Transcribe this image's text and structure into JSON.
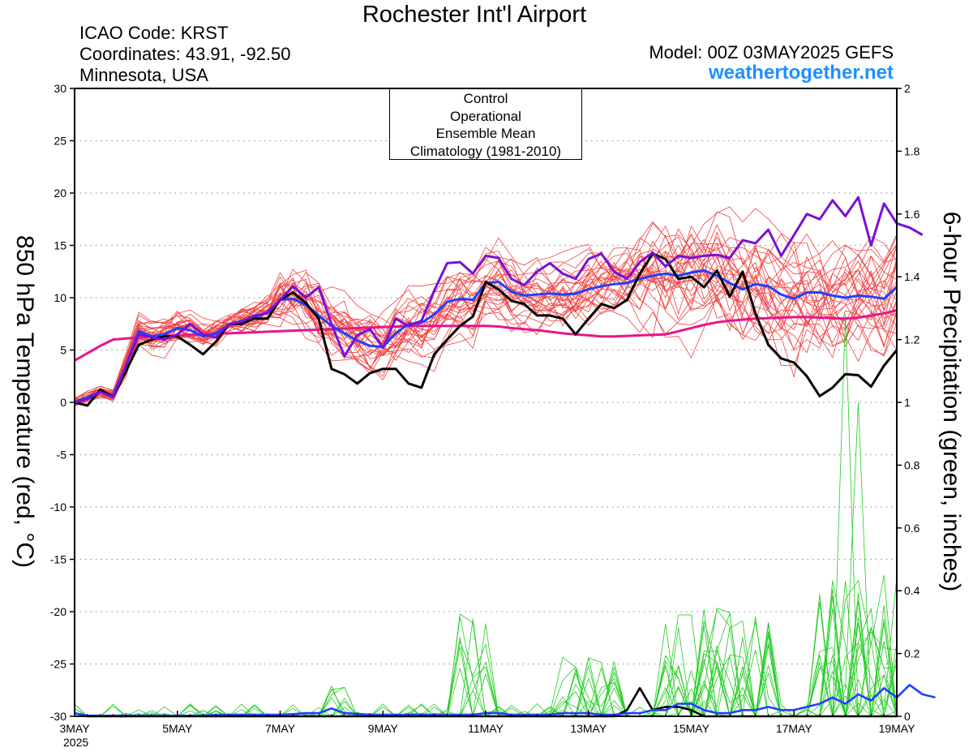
{
  "header": {
    "title": "Rochester Int'l Airport",
    "icao": "ICAO Code: KRST",
    "coords": "Coordinates: 43.91, -92.50",
    "state": "Minnesota, USA",
    "model": "Model: 00Z 03MAY2025 GEFS",
    "site": "weathertogether.net"
  },
  "chart_data": {
    "type": "line",
    "title": "Rochester Int'l Airport",
    "xlabel": "",
    "ylabel": "850 hPa Temperature (red, °C)",
    "y2label": "6-hour Precipitation (green, inches)",
    "year_label": "2025",
    "x_unit": "days since 3MAY 00Z",
    "xlim": [
      0,
      16
    ],
    "ylim": [
      -30,
      30
    ],
    "y2lim": [
      0,
      2
    ],
    "x_ticks": [
      {
        "x": 0,
        "label": "3MAY"
      },
      {
        "x": 2,
        "label": "5MAY"
      },
      {
        "x": 4,
        "label": "7MAY"
      },
      {
        "x": 6,
        "label": "9MAY"
      },
      {
        "x": 8,
        "label": "11MAY"
      },
      {
        "x": 10,
        "label": "13MAY"
      },
      {
        "x": 12,
        "label": "15MAY"
      },
      {
        "x": 14,
        "label": "17MAY"
      },
      {
        "x": 16,
        "label": "19MAY"
      }
    ],
    "y_ticks": [
      "30",
      "25",
      "20",
      "15",
      "10",
      "5",
      "0",
      "-5",
      "-10",
      "-15",
      "-20",
      "-25",
      "-30"
    ],
    "y2_ticks": [
      "2",
      "1.8",
      "1.6",
      "1.4",
      "1.2",
      "1",
      "0.8",
      "0.6",
      "0.4",
      "0.2",
      "0"
    ],
    "legend": [
      {
        "label": "Control",
        "color": "#000000"
      },
      {
        "label": "Operational",
        "color": "#7b0fd6"
      },
      {
        "label": "Ensemble Mean",
        "color": "#2040ff"
      },
      {
        "label": "Climatology (1981-2010)",
        "color": "#e8168a"
      }
    ],
    "colors": {
      "members_temp": "#f04040",
      "members_precip": "#22cc22",
      "control": "#000000",
      "operational": "#7b0fd6",
      "mean": "#2040ff",
      "climatology": "#e8168a"
    },
    "grid": true,
    "series": [
      {
        "name": "Control",
        "axis": "temp",
        "x_step": 0.25,
        "values": [
          0,
          -0.3,
          1.2,
          0.5,
          3,
          5.5,
          6,
          6.3,
          6.3,
          5.5,
          4.6,
          5.8,
          7.5,
          7.5,
          8,
          8,
          9.8,
          10.5,
          9.5,
          8,
          3.2,
          2.7,
          1.8,
          2.8,
          3.2,
          3.2,
          1.8,
          1.4,
          4.6,
          6,
          7.3,
          8.2,
          11.5,
          10.8,
          9.7,
          9.4,
          8.3,
          8.3,
          8,
          6.5,
          8,
          9.4,
          9,
          9.8,
          12.3,
          14.2,
          13.7,
          11.8,
          12,
          11,
          12.6,
          10.1,
          12.5,
          8.5,
          5.5,
          4.2,
          3.8,
          2.5,
          0.6,
          1.4,
          2.7,
          2.6,
          1.5,
          3.5,
          5
        ]
      },
      {
        "name": "Operational",
        "axis": "temp",
        "x_step": 0.25,
        "values": [
          0,
          0.3,
          1,
          0.5,
          3.5,
          6.5,
          6.2,
          6,
          6.5,
          7.5,
          6.5,
          6.2,
          7.5,
          7.7,
          8.3,
          8.5,
          9.8,
          11.1,
          10,
          11,
          7.5,
          4.4,
          6.4,
          7,
          5.2,
          8,
          7.3,
          7.8,
          10.7,
          13.3,
          13.4,
          12.3,
          14,
          13.8,
          11.8,
          11.2,
          12.5,
          13.3,
          12.3,
          11.8,
          13.7,
          14.2,
          12.5,
          11.8,
          13.4,
          14.3,
          13,
          14,
          13.8,
          14,
          14.1,
          13.8,
          15.5,
          15.2,
          16.5,
          14,
          16,
          18,
          17.5,
          19.3,
          17.8,
          19.6,
          15,
          19,
          17.1,
          16.7,
          16
        ]
      },
      {
        "name": "Ensemble Mean",
        "axis": "temp",
        "x_step": 0.25,
        "values": [
          0,
          0.5,
          1,
          0.7,
          3.5,
          6.8,
          6.3,
          6.5,
          7.1,
          6.9,
          6.3,
          6.6,
          7.4,
          7.8,
          8.1,
          8.6,
          9.8,
          9.9,
          9.3,
          8.3,
          7.3,
          6.6,
          5.9,
          5.4,
          5.3,
          6.6,
          7.5,
          7.6,
          8.4,
          9.6,
          9.9,
          9.8,
          11.4,
          11.5,
          10.6,
          10.2,
          10.3,
          10.4,
          10.3,
          10.4,
          10.8,
          11.1,
          11.3,
          11.4,
          11.8,
          12.1,
          12.3,
          12.1,
          12.4,
          12.6,
          12.1,
          11.4,
          10.8,
          11.3,
          11.1,
          10.3,
          9.9,
          10.5,
          10.5,
          10.2,
          10,
          10.2,
          10.1,
          9.9,
          11
        ]
      },
      {
        "name": "Climatology (1981-2010)",
        "axis": "temp",
        "x_step": 0.25,
        "values": [
          4,
          4.7,
          5.4,
          6,
          6.1,
          6.2,
          6.3,
          6.35,
          6.4,
          6.45,
          6.5,
          6.55,
          6.6,
          6.65,
          6.7,
          6.75,
          6.8,
          6.85,
          6.9,
          6.95,
          7,
          7.05,
          7.1,
          7.15,
          7.2,
          7.25,
          7.3,
          7.3,
          7.3,
          7.3,
          7.3,
          7.3,
          7.3,
          7.25,
          7.1,
          7,
          6.9,
          6.75,
          6.6,
          6.5,
          6.4,
          6.3,
          6.3,
          6.35,
          6.4,
          6.45,
          6.5,
          6.8,
          7.1,
          7.4,
          7.65,
          7.8,
          7.9,
          8,
          8.05,
          8.1,
          8.15,
          8.15,
          8.1,
          8.05,
          8,
          8.1,
          8.3,
          8.5,
          8.8
        ]
      },
      {
        "name": "Control",
        "axis": "precip",
        "x_step": 0.25,
        "values": [
          0.01,
          0,
          0,
          0,
          0,
          0,
          0,
          0,
          0,
          0,
          0,
          0,
          0,
          0,
          0,
          0,
          0,
          0,
          0,
          0,
          0,
          0,
          0,
          0,
          0,
          0,
          0,
          0,
          0,
          0,
          0,
          0,
          0,
          0,
          0,
          0,
          0,
          0,
          0,
          0,
          0,
          0,
          0,
          0.02,
          0.09,
          0.02,
          0.03,
          0.03,
          0.02,
          0,
          0,
          0,
          0,
          0,
          0,
          0,
          0,
          0,
          0,
          0,
          0,
          0,
          0,
          0,
          0
        ]
      },
      {
        "name": "Ensemble Mean",
        "axis": "precip",
        "x_step": 0.25,
        "values": [
          0.01,
          0.002,
          0.002,
          0.002,
          0.002,
          0.002,
          0.002,
          0.002,
          0.002,
          0.002,
          0.002,
          0.005,
          0.005,
          0.005,
          0.005,
          0.005,
          0.005,
          0.007,
          0.01,
          0.01,
          0.025,
          0.01,
          0.008,
          0.005,
          0.005,
          0.005,
          0.005,
          0.005,
          0.005,
          0.005,
          0.005,
          0.005,
          0.01,
          0.01,
          0.005,
          0.005,
          0.005,
          0.005,
          0.01,
          0.01,
          0.01,
          0.005,
          0.005,
          0.01,
          0.01,
          0.02,
          0.02,
          0.04,
          0.04,
          0.02,
          0.01,
          0.01,
          0.02,
          0.02,
          0.03,
          0.02,
          0.02,
          0.03,
          0.04,
          0.06,
          0.04,
          0.07,
          0.05,
          0.09,
          0.06,
          0.1,
          0.07,
          0.06
        ]
      }
    ]
  }
}
